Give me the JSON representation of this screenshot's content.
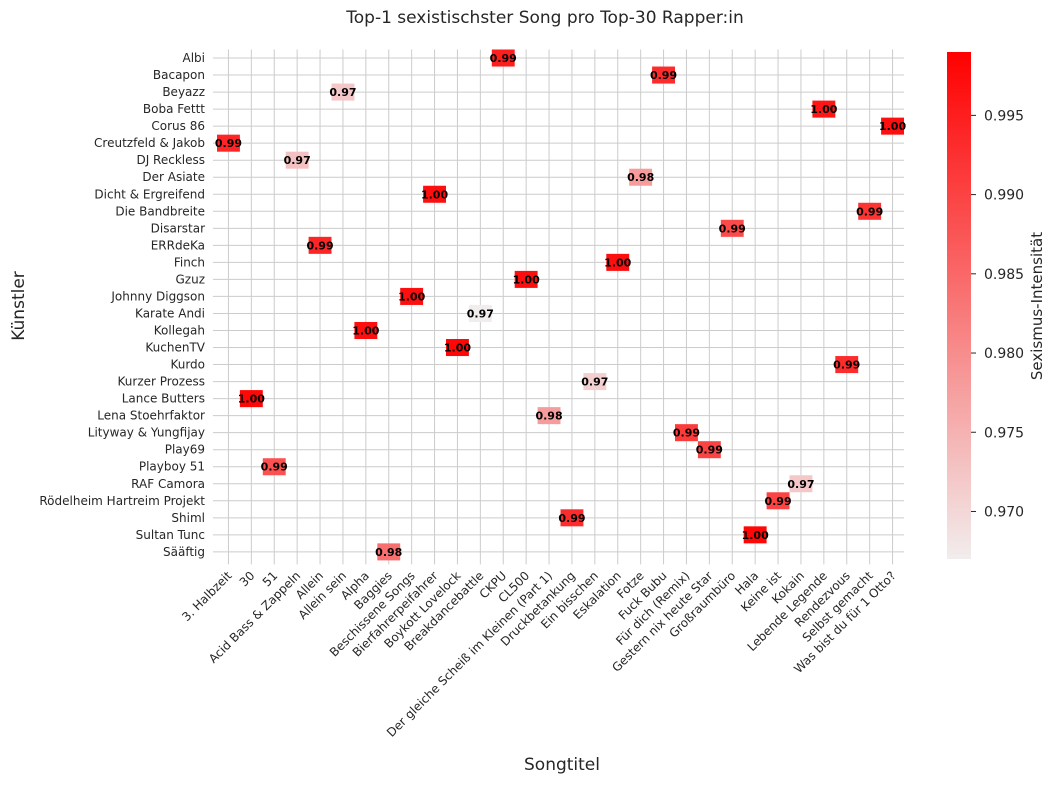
{
  "chart_data": {
    "type": "heatmap",
    "title": "Top-1 sexistischster Song pro Top-30 Rapper:in",
    "xlabel": "Songtitel",
    "ylabel": "Künstler",
    "colorbar": {
      "label": "Sexismus-Intensität",
      "range": [
        0.967,
        0.999
      ],
      "ticks": [
        "0.970",
        "0.975",
        "0.980",
        "0.985",
        "0.990",
        "0.995"
      ],
      "colors": [
        "#f2eded",
        "#ff0000"
      ]
    },
    "grid": true,
    "rows": [
      "Albi",
      "Bacapon",
      "Beyazz",
      "Boba Fettt",
      "Corus 86",
      "Creutzfeld & Jakob",
      "DJ Reckless",
      "Der Asiate",
      "Dicht & Ergreifend",
      "Die Bandbreite",
      "Disarstar",
      "ERRdeKa",
      "Finch",
      "Gzuz",
      "Johnny Diggson",
      "Karate Andi",
      "Kollegah",
      "KuchenTV",
      "Kurdo",
      "Kurzer Prozess",
      "Lance Butters",
      "Lena Stoehrfaktor",
      "Lityway & Yungfijay",
      "Play69",
      "Playboy 51",
      "RAF Camora",
      "Rödelheim Hartreim Projekt",
      "Shiml",
      "Sultan Tunc",
      "Sääftig"
    ],
    "columns": [
      "3. Halbzeit",
      "30",
      "51",
      "Acid Bass & Zappeln",
      "Allein",
      "Allein sein",
      "Alpha",
      "Baggies",
      "Beschissene Songs",
      "Bierfahrerpeifahrer",
      "Boykott Lovelock",
      "Breakdancebattle",
      "CKPU",
      "CL500",
      "Der gleiche Scheiß im Kleinen (Part 1)",
      "Druckbetankung",
      "Ein bisschen",
      "Eskalation",
      "Fotze",
      "Fuck Bubu",
      "Für dich (Remix)",
      "Gestern nix heute Star",
      "Großraumbüro",
      "Hala",
      "Keine ist",
      "Kokain",
      "Lebende Legende",
      "Rendezvous",
      "Selbst gemacht",
      "Was bist du für 1 Otto?"
    ],
    "cells": [
      {
        "row": "Albi",
        "col": "CKPU",
        "value": 0.995,
        "label": "0.99"
      },
      {
        "row": "Bacapon",
        "col": "Fuck Bubu",
        "value": 0.993,
        "label": "0.99"
      },
      {
        "row": "Beyazz",
        "col": "Allein sein",
        "value": 0.972,
        "label": "0.97"
      },
      {
        "row": "Boba Fettt",
        "col": "Lebende Legende",
        "value": 0.996,
        "label": "1.00"
      },
      {
        "row": "Corus 86",
        "col": "Was bist du für 1 Otto?",
        "value": 0.997,
        "label": "1.00"
      },
      {
        "row": "Creutzfeld & Jakob",
        "col": "3. Halbzeit",
        "value": 0.994,
        "label": "0.99"
      },
      {
        "row": "DJ Reckless",
        "col": "Acid Bass & Zappeln",
        "value": 0.973,
        "label": "0.97"
      },
      {
        "row": "Der Asiate",
        "col": "Fotze",
        "value": 0.978,
        "label": "0.98"
      },
      {
        "row": "Dicht & Ergreifend",
        "col": "Bierfahrerpeifahrer",
        "value": 0.997,
        "label": "1.00"
      },
      {
        "row": "Die Bandbreite",
        "col": "Selbst gemacht",
        "value": 0.992,
        "label": "0.99"
      },
      {
        "row": "Disarstar",
        "col": "Großraumbüro",
        "value": 0.989,
        "label": "0.99"
      },
      {
        "row": "ERRdeKa",
        "col": "Allein",
        "value": 0.994,
        "label": "0.99"
      },
      {
        "row": "Finch",
        "col": "Eskalation",
        "value": 0.997,
        "label": "1.00"
      },
      {
        "row": "Gzuz",
        "col": "CL500",
        "value": 0.997,
        "label": "1.00"
      },
      {
        "row": "Johnny Diggson",
        "col": "Beschissene Songs",
        "value": 0.997,
        "label": "1.00"
      },
      {
        "row": "Karate Andi",
        "col": "Breakdancebattle",
        "value": 0.967,
        "label": "0.97"
      },
      {
        "row": "Kollegah",
        "col": "Alpha",
        "value": 0.997,
        "label": "1.00"
      },
      {
        "row": "KuchenTV",
        "col": "Boykott Lovelock",
        "value": 0.998,
        "label": "1.00"
      },
      {
        "row": "Kurdo",
        "col": "Rendezvous",
        "value": 0.993,
        "label": "0.99"
      },
      {
        "row": "Kurzer Prozess",
        "col": "Ein bisschen",
        "value": 0.971,
        "label": "0.97"
      },
      {
        "row": "Lance Butters",
        "col": "30",
        "value": 0.998,
        "label": "1.00"
      },
      {
        "row": "Lena Stoehrfaktor",
        "col": "Der gleiche Scheiß im Kleinen (Part 1)",
        "value": 0.978,
        "label": "0.98"
      },
      {
        "row": "Lityway & Yungfijay",
        "col": "Für dich (Remix)",
        "value": 0.991,
        "label": "0.99"
      },
      {
        "row": "Play69",
        "col": "Gestern nix heute Star",
        "value": 0.99,
        "label": "0.99"
      },
      {
        "row": "Playboy 51",
        "col": "51",
        "value": 0.988,
        "label": "0.99"
      },
      {
        "row": "RAF Camora",
        "col": "Kokain",
        "value": 0.972,
        "label": "0.97"
      },
      {
        "row": "Rödelheim Hartreim Projekt",
        "col": "Keine ist",
        "value": 0.99,
        "label": "0.99"
      },
      {
        "row": "Shiml",
        "col": "Druckbetankung",
        "value": 0.993,
        "label": "0.99"
      },
      {
        "row": "Sultan Tunc",
        "col": "Hala",
        "value": 0.998,
        "label": "1.00"
      },
      {
        "row": "Sääftig",
        "col": "Baggies",
        "value": 0.984,
        "label": "0.98"
      }
    ]
  }
}
